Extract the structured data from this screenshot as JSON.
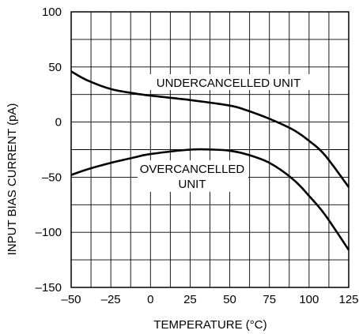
{
  "chart_data": {
    "type": "line",
    "title": "",
    "xlabel": "TEMPERATURE (°C)",
    "ylabel": "INPUT BIAS CURRENT (pA)",
    "xlim": [
      -50,
      125
    ],
    "ylim": [
      -150,
      100
    ],
    "x_ticks": [
      -50,
      -25,
      0,
      25,
      50,
      75,
      100,
      125
    ],
    "x_tick_labels": [
      "–50",
      "–25",
      "0",
      "25",
      "50",
      "75",
      "100",
      "125"
    ],
    "y_ticks": [
      100,
      50,
      0,
      -50,
      -100,
      -150
    ],
    "y_tick_labels": [
      "100",
      "50",
      "0",
      "–50",
      "–100",
      "–150"
    ],
    "grid": true,
    "grid_x_step": 12.5,
    "grid_y_step": 25,
    "series": [
      {
        "name": "UNDERCANCELLED UNIT",
        "x": [
          -50,
          -40,
          -25,
          -10,
          0,
          25,
          50,
          60,
          75,
          90,
          100,
          110,
          125
        ],
        "y": [
          46,
          38,
          30,
          26,
          24,
          20,
          15,
          11,
          3,
          -7,
          -17,
          -30,
          -59
        ]
      },
      {
        "name": "OVERCANCELLED UNIT",
        "x": [
          -50,
          -40,
          -25,
          -10,
          0,
          25,
          40,
          50,
          60,
          75,
          90,
          100,
          110,
          125
        ],
        "y": [
          -48,
          -43,
          -37,
          -32,
          -29,
          -25,
          -25,
          -26,
          -29,
          -37,
          -52,
          -67,
          -84,
          -116
        ]
      }
    ],
    "annotations": [
      {
        "text": "UNDERCANCELLED UNIT"
      },
      {
        "text": "OVERCANCELLED"
      },
      {
        "text": "UNIT"
      }
    ]
  }
}
